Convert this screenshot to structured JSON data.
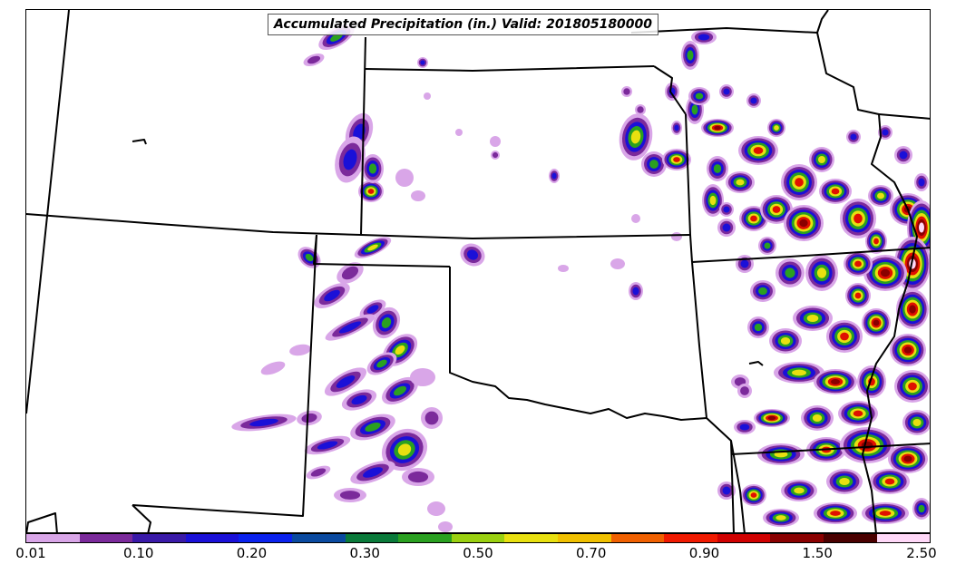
{
  "title": "Accumulated Precipitation (in.) Valid: 201805180000",
  "colorbar": {
    "tick_labels": [
      "0.01",
      "0.10",
      "0.20",
      "0.30",
      "0.50",
      "0.70",
      "0.90",
      "1.50",
      "2.50"
    ],
    "colors": [
      "#d9a6e8",
      "#7b2a9b",
      "#3a1aa8",
      "#1a10d8",
      "#0a22ee",
      "#0a4aa0",
      "#0a7a3a",
      "#2aa020",
      "#9ad010",
      "#e8e010",
      "#f0c000",
      "#f06000",
      "#f01a00",
      "#d00000",
      "#8a0000",
      "#4a0000",
      "#ffd8f8"
    ]
  },
  "colors": {
    "light": "#d9a6e8",
    "purple": "#7b2a9b",
    "blue": "#1a10d8",
    "green": "#2aa020",
    "yellow": "#e8e010",
    "red": "#e01000",
    "dark": "#8a0000",
    "pink": "#ffd8f8"
  }
}
